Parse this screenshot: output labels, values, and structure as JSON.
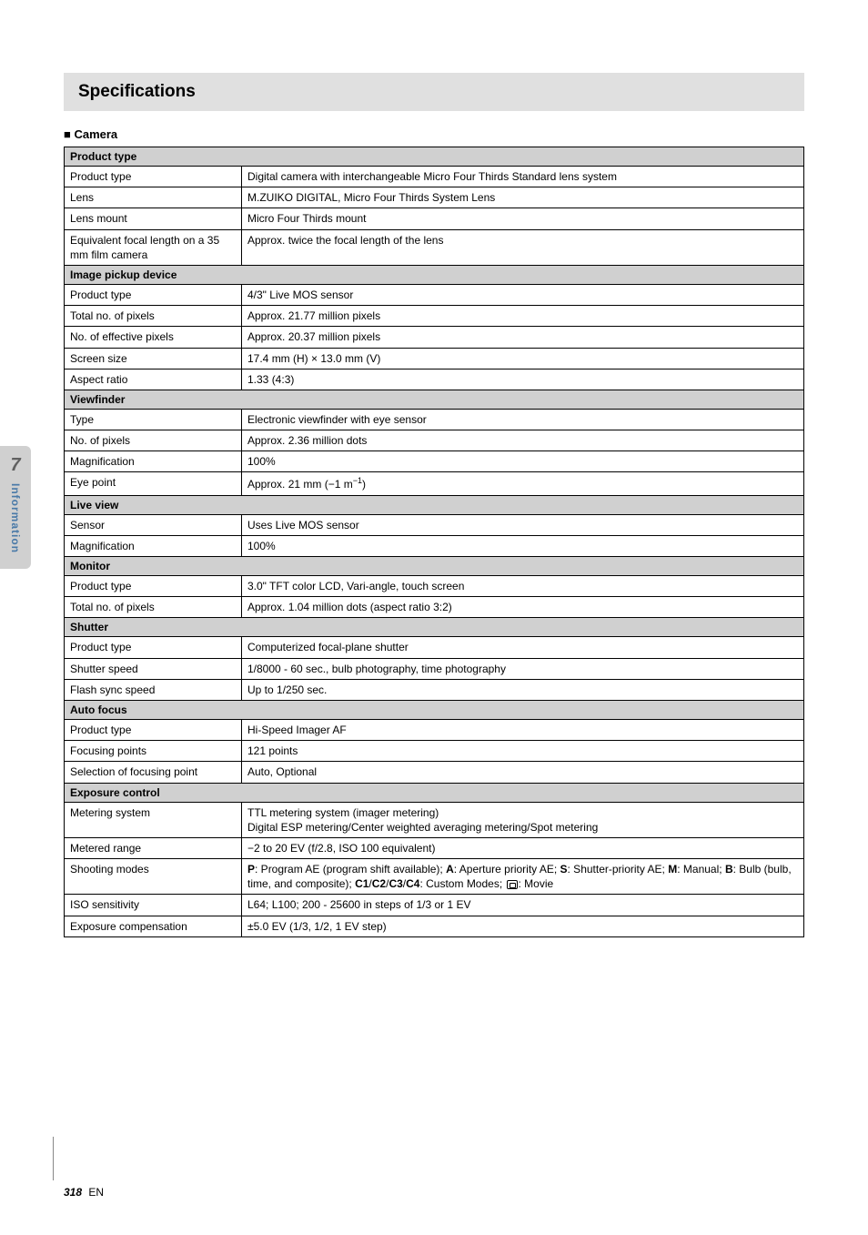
{
  "sideTab": {
    "number": "7",
    "label": "Information"
  },
  "footer": {
    "pageNumber": "318",
    "lang": "EN"
  },
  "title": "Specifications",
  "subHeading": "■ Camera",
  "sections": [
    {
      "header": "Product type",
      "rows": [
        {
          "label": "Product type",
          "value": "Digital camera with interchangeable Micro Four Thirds Standard lens system"
        },
        {
          "label": "Lens",
          "value": "M.ZUIKO DIGITAL, Micro Four Thirds System Lens"
        },
        {
          "label": "Lens mount",
          "value": "Micro Four Thirds mount"
        },
        {
          "label": "Equivalent focal length on a 35 mm film camera",
          "value": "Approx. twice the focal length of the lens"
        }
      ]
    },
    {
      "header": "Image pickup device",
      "rows": [
        {
          "label": "Product type",
          "value": "4/3\" Live MOS sensor"
        },
        {
          "label": "Total no. of pixels",
          "value": "Approx. 21.77 million pixels"
        },
        {
          "label": "No. of effective pixels",
          "value": "Approx. 20.37 million pixels"
        },
        {
          "label": "Screen size",
          "value": "17.4 mm (H) × 13.0 mm (V)"
        },
        {
          "label": "Aspect ratio",
          "value": "1.33 (4:3)"
        }
      ]
    },
    {
      "header": "Viewfinder",
      "rows": [
        {
          "label": "Type",
          "value": "Electronic viewfinder with eye sensor"
        },
        {
          "label": "No. of pixels",
          "value": "Approx. 2.36 million dots"
        },
        {
          "label": "Magnification",
          "value": "100%"
        },
        {
          "label": "Eye point",
          "valueHtml": "Approx. 21 mm (−1 m<sup>−1</sup>)"
        }
      ]
    },
    {
      "header": "Live view",
      "rows": [
        {
          "label": "Sensor",
          "value": "Uses Live MOS sensor"
        },
        {
          "label": "Magnification",
          "value": "100%"
        }
      ]
    },
    {
      "header": "Monitor",
      "rows": [
        {
          "label": "Product type",
          "value": "3.0\" TFT color LCD, Vari-angle, touch screen"
        },
        {
          "label": "Total no. of pixels",
          "value": "Approx. 1.04 million dots (aspect ratio 3:2)"
        }
      ]
    },
    {
      "header": "Shutter",
      "rows": [
        {
          "label": "Product type",
          "value": "Computerized focal-plane shutter"
        },
        {
          "label": "Shutter speed",
          "value": "1/8000 - 60 sec., bulb photography, time photography"
        },
        {
          "label": "Flash sync speed",
          "value": "Up to 1/250 sec."
        }
      ]
    },
    {
      "header": "Auto focus",
      "rows": [
        {
          "label": "Product type",
          "value": "Hi-Speed Imager AF"
        },
        {
          "label": "Focusing points",
          "value": "121 points"
        },
        {
          "label": "Selection of focusing point",
          "value": "Auto, Optional"
        }
      ]
    },
    {
      "header": "Exposure control",
      "rows": [
        {
          "label": "Metering system",
          "value": "TTL metering system (imager metering)\nDigital ESP metering/Center weighted averaging metering/Spot metering"
        },
        {
          "label": "Metered range",
          "value": "−2 to 20 EV (f/2.8, ISO 100 equivalent)"
        },
        {
          "label": "Shooting modes",
          "valueHtml": "<b>P</b>: Program AE (program shift available); <b>A</b>: Aperture priority AE; <b>S</b>: Shutter-priority AE; <b>M</b>: Manual; <b>B</b>: Bulb (bulb, time, and composite); <b>C1</b>/<b>C2</b>/<b>C3</b>/<b>C4</b>: Custom Modes; <span class=\"movie-icon\" data-name=\"movie-icon\" data-interactable=\"false\"></span>: Movie"
        },
        {
          "label": "ISO sensitivity",
          "value": "L64; L100; 200 - 25600 in steps of 1/3 or 1 EV"
        },
        {
          "label": "Exposure compensation",
          "value": "±5.0 EV (1/3, 1/2, 1 EV step)"
        }
      ]
    }
  ]
}
